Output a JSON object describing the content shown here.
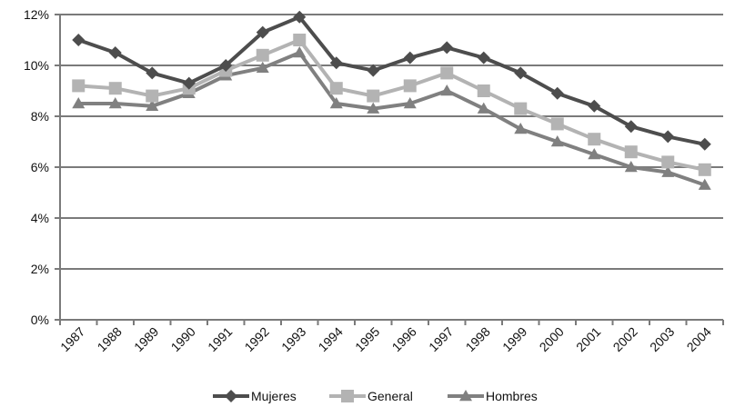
{
  "chart_data": {
    "type": "line",
    "title": "",
    "xlabel": "",
    "ylabel": "",
    "categories": [
      "1987",
      "1988",
      "1989",
      "1990",
      "1991",
      "1992",
      "1993",
      "1994",
      "1995",
      "1996",
      "1997",
      "1998",
      "1999",
      "2000",
      "2001",
      "2002",
      "2003",
      "2004"
    ],
    "ylim": [
      0,
      12
    ],
    "yticks": [
      0,
      2,
      4,
      6,
      8,
      10,
      12
    ],
    "ytick_labels": [
      "0%",
      "2%",
      "4%",
      "6%",
      "8%",
      "10%",
      "12%"
    ],
    "grid": "horizontal",
    "legend_position": "bottom",
    "series": [
      {
        "name": "Mujeres",
        "marker": "diamond",
        "color": "#4d4d4d",
        "values": [
          11.0,
          10.5,
          9.7,
          9.3,
          10.0,
          11.3,
          11.9,
          10.1,
          9.8,
          10.3,
          10.7,
          10.3,
          9.7,
          8.9,
          8.4,
          7.6,
          7.2,
          6.9
        ]
      },
      {
        "name": "General",
        "marker": "square",
        "color": "#b3b3b3",
        "values": [
          9.2,
          9.1,
          8.8,
          9.1,
          9.8,
          10.4,
          11.0,
          9.1,
          8.8,
          9.2,
          9.7,
          9.0,
          8.3,
          7.7,
          7.1,
          6.6,
          6.2,
          5.9
        ]
      },
      {
        "name": "Hombres",
        "marker": "triangle",
        "color": "#808080",
        "values": [
          8.5,
          8.5,
          8.4,
          8.9,
          9.6,
          9.9,
          10.5,
          8.5,
          8.3,
          8.5,
          9.0,
          8.3,
          7.5,
          7.0,
          6.5,
          6.0,
          5.8,
          5.3
        ]
      }
    ]
  }
}
